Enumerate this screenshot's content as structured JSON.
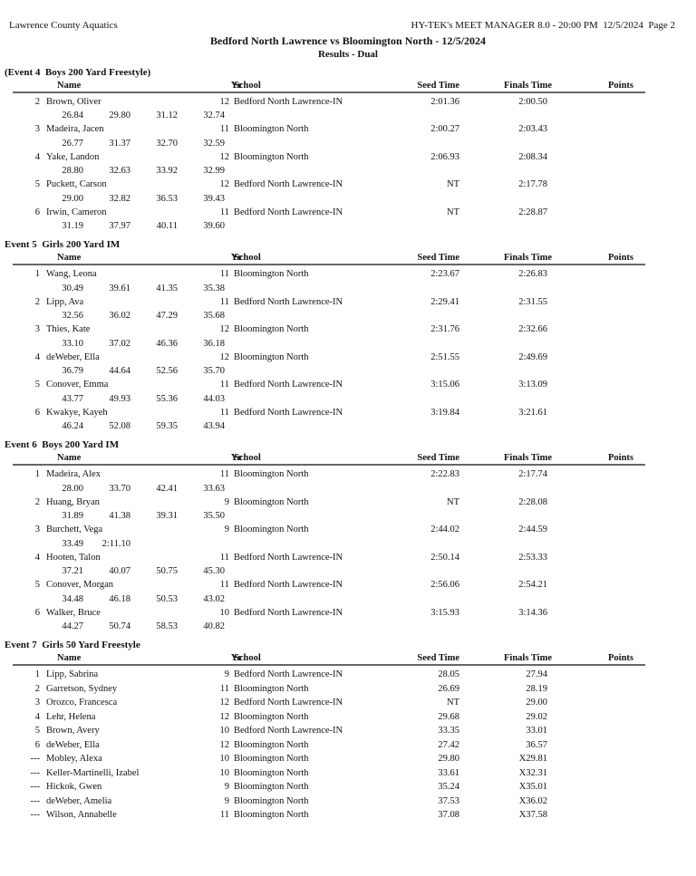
{
  "page": {
    "vendor_left": "Lawrence County Aquatics",
    "vendor_right": "HY-TEK's MEET MANAGER 8.0 - 20:00 PM  12/5/2024  Page 2",
    "title": "Bedford North Lawrence vs Bloomington North - 12/5/2024",
    "subtitle": "Results - Dual"
  },
  "columns": {
    "name": "Name",
    "yr": "Yr",
    "school": "School",
    "seed": "Seed Time",
    "finals": "Finals Time",
    "points": "Points"
  },
  "events": [
    {
      "title": "(Event 4  Boys 200 Yard Freestyle)",
      "entries": [
        {
          "place": "2",
          "name": "Brown, Oliver",
          "yr": "12",
          "school": "Bedford North Lawrence-IN",
          "seed": "2:01.36",
          "finals": "2:00.50",
          "splits": [
            "26.84",
            "29.80",
            "31.12",
            "32.74"
          ]
        },
        {
          "place": "3",
          "name": "Madeira, Jacen",
          "yr": "11",
          "school": "Bloomington North",
          "seed": "2:00.27",
          "finals": "2:03.43",
          "splits": [
            "26.77",
            "31.37",
            "32.70",
            "32.59"
          ]
        },
        {
          "place": "4",
          "name": "Yake, Landon",
          "yr": "12",
          "school": "Bloomington North",
          "seed": "2:06.93",
          "finals": "2:08.34",
          "splits": [
            "28.80",
            "32.63",
            "33.92",
            "32.99"
          ]
        },
        {
          "place": "5",
          "name": "Puckett, Carson",
          "yr": "12",
          "school": "Bedford North Lawrence-IN",
          "seed": "NT",
          "finals": "2:17.78",
          "splits": [
            "29.00",
            "32.82",
            "36.53",
            "39.43"
          ]
        },
        {
          "place": "6",
          "name": "Irwin, Cameron",
          "yr": "11",
          "school": "Bedford North Lawrence-IN",
          "seed": "NT",
          "finals": "2:28.87",
          "splits": [
            "31.19",
            "37.97",
            "40.11",
            "39.60"
          ]
        }
      ]
    },
    {
      "title": "Event 5  Girls 200 Yard IM",
      "entries": [
        {
          "place": "1",
          "name": "Wang, Leona",
          "yr": "11",
          "school": "Bloomington North",
          "seed": "2:23.67",
          "finals": "2:26.83",
          "splits": [
            "30.49",
            "39.61",
            "41.35",
            "35.38"
          ]
        },
        {
          "place": "2",
          "name": "Lipp, Ava",
          "yr": "11",
          "school": "Bedford North Lawrence-IN",
          "seed": "2:29.41",
          "finals": "2:31.55",
          "splits": [
            "32.56",
            "36.02",
            "47.29",
            "35.68"
          ]
        },
        {
          "place": "3",
          "name": "Thies, Kate",
          "yr": "12",
          "school": "Bloomington North",
          "seed": "2:31.76",
          "finals": "2:32.66",
          "splits": [
            "33.10",
            "37.02",
            "46.36",
            "36.18"
          ]
        },
        {
          "place": "4",
          "name": "deWeber, Ella",
          "yr": "12",
          "school": "Bloomington North",
          "seed": "2:51.55",
          "finals": "2:49.69",
          "splits": [
            "36.79",
            "44.64",
            "52.56",
            "35.70"
          ]
        },
        {
          "place": "5",
          "name": "Conover, Emma",
          "yr": "11",
          "school": "Bedford North Lawrence-IN",
          "seed": "3:15.06",
          "finals": "3:13.09",
          "splits": [
            "43.77",
            "49.93",
            "55.36",
            "44.03"
          ]
        },
        {
          "place": "6",
          "name": "Kwakye, Kayeh",
          "yr": "11",
          "school": "Bedford North Lawrence-IN",
          "seed": "3:19.84",
          "finals": "3:21.61",
          "splits": [
            "46.24",
            "52.08",
            "59.35",
            "43.94"
          ]
        }
      ]
    },
    {
      "title": "Event 6  Boys 200 Yard IM",
      "entries": [
        {
          "place": "1",
          "name": "Madeira, Alex",
          "yr": "11",
          "school": "Bloomington North",
          "seed": "2:22.83",
          "finals": "2:17.74",
          "splits": [
            "28.00",
            "33.70",
            "42.41",
            "33.63"
          ]
        },
        {
          "place": "2",
          "name": "Huang, Bryan",
          "yr": "9",
          "school": "Bloomington North",
          "seed": "NT",
          "finals": "2:28.08",
          "splits": [
            "31.89",
            "41.38",
            "39.31",
            "35.50"
          ]
        },
        {
          "place": "3",
          "name": "Burchett, Vega",
          "yr": "9",
          "school": "Bloomington North",
          "seed": "2:44.02",
          "finals": "2:44.59",
          "splits": [
            "33.49",
            "2:11.10"
          ]
        },
        {
          "place": "4",
          "name": "Hooten, Talon",
          "yr": "11",
          "school": "Bedford North Lawrence-IN",
          "seed": "2:50.14",
          "finals": "2:53.33",
          "splits": [
            "37.21",
            "40.07",
            "50.75",
            "45.30"
          ]
        },
        {
          "place": "5",
          "name": "Conover, Morgan",
          "yr": "11",
          "school": "Bedford North Lawrence-IN",
          "seed": "2:56.06",
          "finals": "2:54.21",
          "splits": [
            "34.48",
            "46.18",
            "50.53",
            "43.02"
          ]
        },
        {
          "place": "6",
          "name": "Walker, Bruce",
          "yr": "10",
          "school": "Bedford North Lawrence-IN",
          "seed": "3:15.93",
          "finals": "3:14.36",
          "splits": [
            "44.27",
            "50.74",
            "58.53",
            "40.82"
          ]
        }
      ]
    },
    {
      "title": "Event 7  Girls 50 Yard Freestyle",
      "entries": [
        {
          "place": "1",
          "name": "Lipp, Sabrina",
          "yr": "9",
          "school": "Bedford North Lawrence-IN",
          "seed": "28.05",
          "finals": "27.94"
        },
        {
          "place": "2",
          "name": "Garretson, Sydney",
          "yr": "11",
          "school": "Bloomington North",
          "seed": "26.69",
          "finals": "28.19"
        },
        {
          "place": "3",
          "name": "Orozco, Francesca",
          "yr": "12",
          "school": "Bedford North Lawrence-IN",
          "seed": "NT",
          "finals": "29.00"
        },
        {
          "place": "4",
          "name": "Lehr, Helena",
          "yr": "12",
          "school": "Bloomington North",
          "seed": "29.68",
          "finals": "29.02"
        },
        {
          "place": "5",
          "name": "Brown, Avery",
          "yr": "10",
          "school": "Bedford North Lawrence-IN",
          "seed": "33.35",
          "finals": "33.01"
        },
        {
          "place": "6",
          "name": "deWeber, Ella",
          "yr": "12",
          "school": "Bloomington North",
          "seed": "27.42",
          "finals": "36.57"
        },
        {
          "place": "---",
          "name": "Mobley, Alexa",
          "yr": "10",
          "school": "Bloomington North",
          "seed": "29.80",
          "finals": "X29.81"
        },
        {
          "place": "---",
          "name": "Keller-Martinelli, Izabel",
          "yr": "10",
          "school": "Bloomington North",
          "seed": "33.61",
          "finals": "X32.31"
        },
        {
          "place": "---",
          "name": "Hickok, Gwen",
          "yr": "9",
          "school": "Bloomington North",
          "seed": "35.24",
          "finals": "X35.01"
        },
        {
          "place": "---",
          "name": "deWeber, Amelia",
          "yr": "9",
          "school": "Bloomington North",
          "seed": "37.53",
          "finals": "X36.02"
        },
        {
          "place": "---",
          "name": "Wilson, Annabelle",
          "yr": "11",
          "school": "Bloomington North",
          "seed": "37.08",
          "finals": "X37.58"
        }
      ]
    }
  ]
}
